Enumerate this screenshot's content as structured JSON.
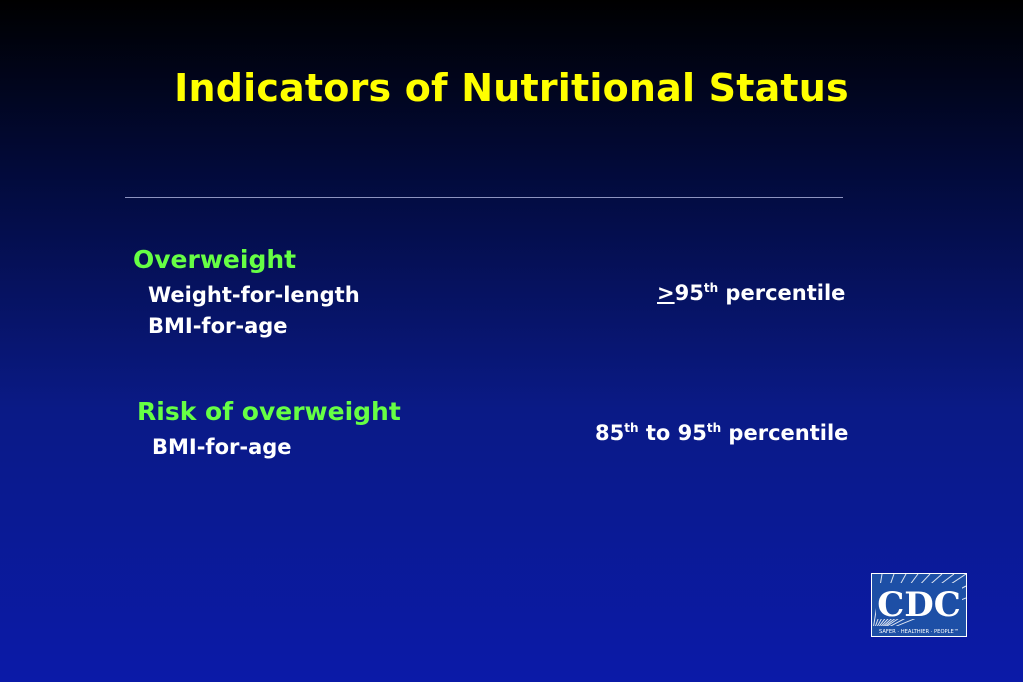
{
  "slide": {
    "title": "Indicators of Nutritional Status",
    "sections": [
      {
        "heading": "Overweight",
        "indicators": [
          "Weight-for-length",
          "BMI-for-age"
        ],
        "criterion": {
          "symbol": ">",
          "number": "95",
          "superscript": "th",
          "suffix": " percentile"
        }
      },
      {
        "heading": "Risk of overweight",
        "indicators": [
          "BMI-for-age"
        ],
        "criterion": {
          "number_low": "85",
          "superscript_low": "th",
          "middle": " to ",
          "number_high": "95",
          "superscript_high": "th",
          "suffix": " percentile"
        }
      }
    ],
    "logo": {
      "text": "CDC",
      "tagline": "SAFER · HEALTHIER · PEOPLE™"
    }
  },
  "colors": {
    "title": "#ffff00",
    "heading": "#66ff44",
    "body_text": "#ffffff",
    "background_top": "#000000",
    "background_bottom": "#0b1aa8",
    "logo_blue": "#1d4fa6"
  },
  "icons": {
    "logo": "cdc-logo-icon"
  }
}
